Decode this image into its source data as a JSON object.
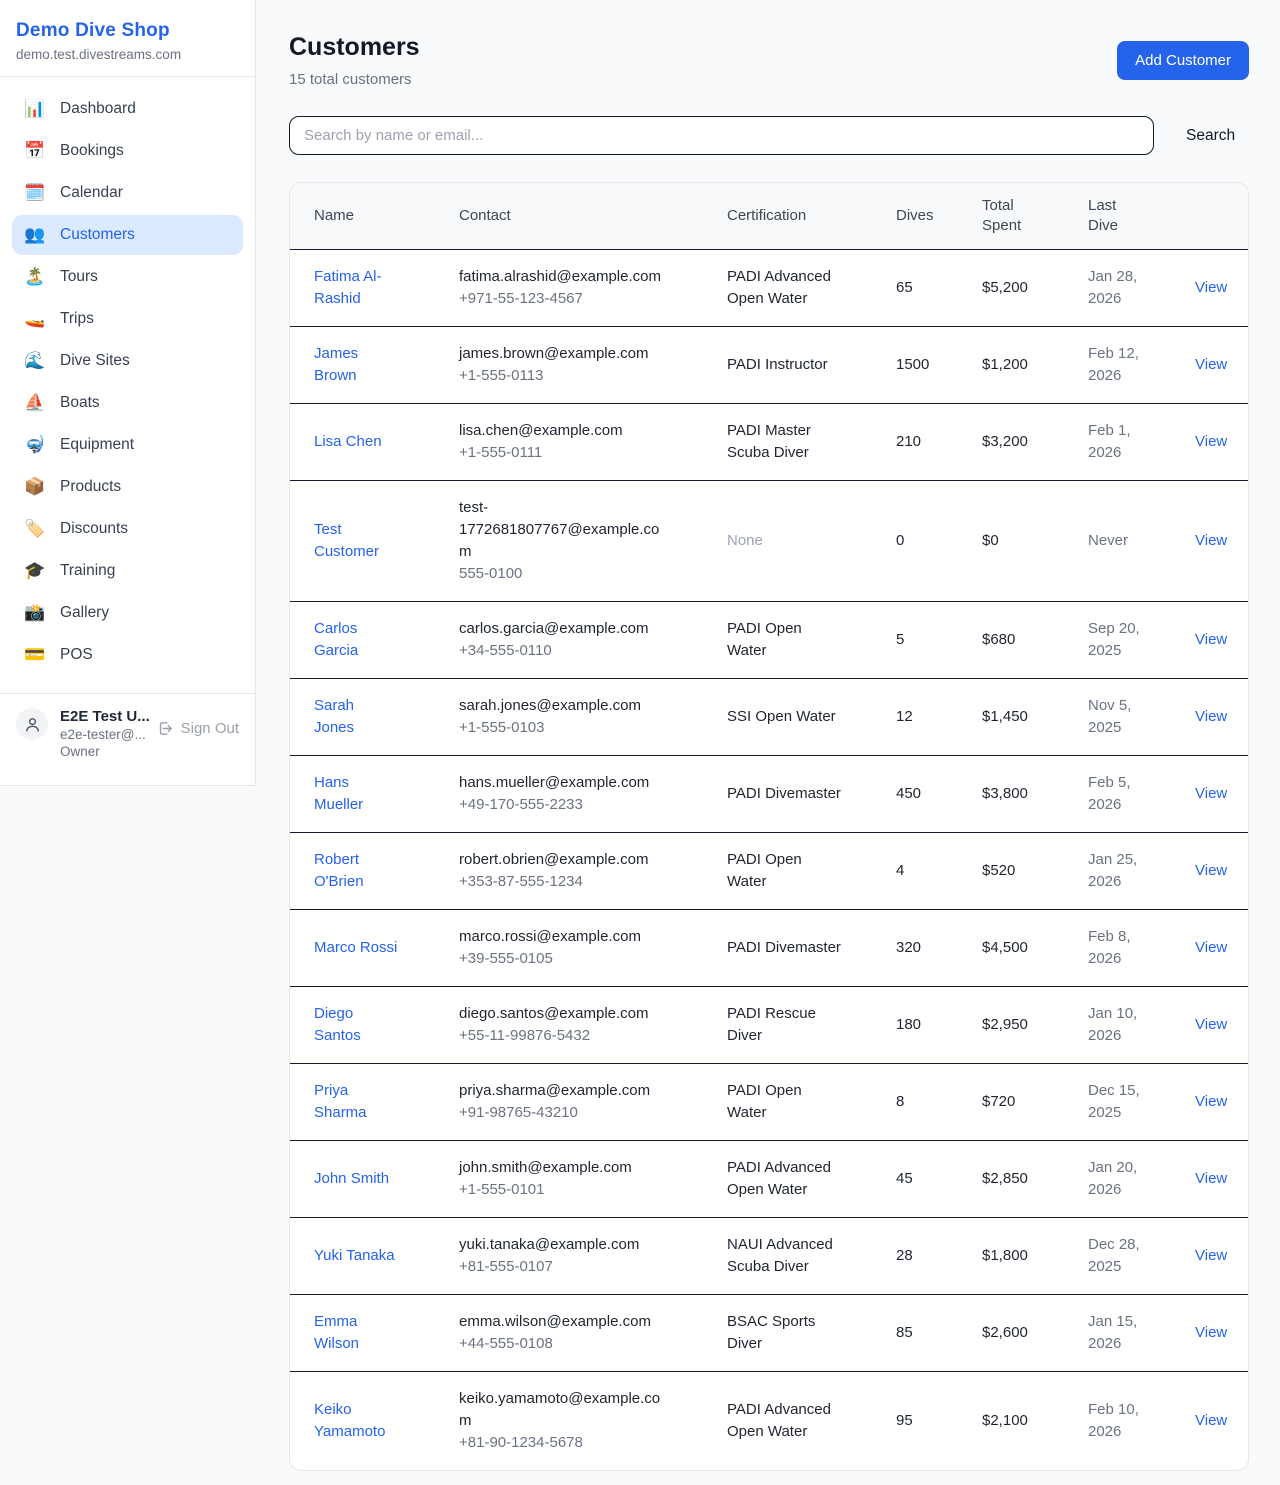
{
  "colors": {
    "accent": "#2563eb",
    "selected_item_bg": "#dbeafe",
    "page_bg": "#f8fafc",
    "dark_border": "#151b28"
  },
  "sidebar": {
    "title": "Demo Dive Shop",
    "subdomain": "demo.test.divestreams.com",
    "items": [
      {
        "icon": "bar-chart-icon",
        "glyph": "📊",
        "label": "Dashboard",
        "active": false
      },
      {
        "icon": "calendar-date-icon",
        "glyph": "📅",
        "label": "Bookings",
        "active": false
      },
      {
        "icon": "calendar-pad-icon",
        "glyph": "🗓️",
        "label": "Calendar",
        "active": false
      },
      {
        "icon": "people-icon",
        "glyph": "👥",
        "label": "Customers",
        "active": true
      },
      {
        "icon": "island-icon",
        "glyph": "🏝️",
        "label": "Tours",
        "active": false
      },
      {
        "icon": "speedboat-icon",
        "glyph": "🚤",
        "label": "Trips",
        "active": false
      },
      {
        "icon": "wave-icon",
        "glyph": "🌊",
        "label": "Dive Sites",
        "active": false
      },
      {
        "icon": "sailboat-icon",
        "glyph": "⛵",
        "label": "Boats",
        "active": false
      },
      {
        "icon": "diving-mask-icon",
        "glyph": "🤿",
        "label": "Equipment",
        "active": false
      },
      {
        "icon": "package-icon",
        "glyph": "📦",
        "label": "Products",
        "active": false
      },
      {
        "icon": "label-tag-icon",
        "glyph": "🏷️",
        "label": "Discounts",
        "active": false
      },
      {
        "icon": "graduation-cap-icon",
        "glyph": "🎓",
        "label": "Training",
        "active": false
      },
      {
        "icon": "camera-icon",
        "glyph": "📸",
        "label": "Gallery",
        "active": false
      },
      {
        "icon": "credit-card-icon",
        "glyph": "💳",
        "label": "POS",
        "active": false
      }
    ],
    "user": {
      "name": "E2E Test U...",
      "email": "e2e-tester@...",
      "role": "Owner",
      "sign_out_label": "Sign Out"
    }
  },
  "header": {
    "title": "Customers",
    "subtitle": "15 total customers",
    "add_button_label": "Add Customer"
  },
  "search": {
    "placeholder": "Search by name or email...",
    "button_label": "Search"
  },
  "table": {
    "columns": [
      "Name",
      "Contact",
      "Certification",
      "Dives",
      "Total Spent",
      "Last Dive"
    ],
    "view_label": "View",
    "rows": [
      {
        "name": "Fatima Al-Rashid",
        "email": "fatima.alrashid@example.com",
        "phone": "+971-55-123-4567",
        "certification": "PADI Advanced Open Water",
        "dives": "65",
        "total_spent": "$5,200",
        "last_dive": "Jan 28, 2026"
      },
      {
        "name": "James Brown",
        "email": "james.brown@example.com",
        "phone": "+1-555-0113",
        "certification": "PADI Instructor",
        "dives": "1500",
        "total_spent": "$1,200",
        "last_dive": "Feb 12, 2026"
      },
      {
        "name": "Lisa Chen",
        "email": "lisa.chen@example.com",
        "phone": "+1-555-0111",
        "certification": "PADI Master Scuba Diver",
        "dives": "210",
        "total_spent": "$3,200",
        "last_dive": "Feb 1, 2026"
      },
      {
        "name": "Test Customer",
        "email": "test-1772681807767@example.com",
        "phone": "555-0100",
        "certification": "None",
        "dives": "0",
        "total_spent": "$0",
        "last_dive": "Never"
      },
      {
        "name": "Carlos Garcia",
        "email": "carlos.garcia@example.com",
        "phone": "+34-555-0110",
        "certification": "PADI Open Water",
        "dives": "5",
        "total_spent": "$680",
        "last_dive": "Sep 20, 2025"
      },
      {
        "name": "Sarah Jones",
        "email": "sarah.jones@example.com",
        "phone": "+1-555-0103",
        "certification": "SSI Open Water",
        "dives": "12",
        "total_spent": "$1,450",
        "last_dive": "Nov 5, 2025"
      },
      {
        "name": "Hans Mueller",
        "email": "hans.mueller@example.com",
        "phone": "+49-170-555-2233",
        "certification": "PADI Divemaster",
        "dives": "450",
        "total_spent": "$3,800",
        "last_dive": "Feb 5, 2026"
      },
      {
        "name": "Robert O'Brien",
        "email": "robert.obrien@example.com",
        "phone": "+353-87-555-1234",
        "certification": "PADI Open Water",
        "dives": "4",
        "total_spent": "$520",
        "last_dive": "Jan 25, 2026"
      },
      {
        "name": "Marco Rossi",
        "email": "marco.rossi@example.com",
        "phone": "+39-555-0105",
        "certification": "PADI Divemaster",
        "dives": "320",
        "total_spent": "$4,500",
        "last_dive": "Feb 8, 2026"
      },
      {
        "name": "Diego Santos",
        "email": "diego.santos@example.com",
        "phone": "+55-11-99876-5432",
        "certification": "PADI Rescue Diver",
        "dives": "180",
        "total_spent": "$2,950",
        "last_dive": "Jan 10, 2026"
      },
      {
        "name": "Priya Sharma",
        "email": "priya.sharma@example.com",
        "phone": "+91-98765-43210",
        "certification": "PADI Open Water",
        "dives": "8",
        "total_spent": "$720",
        "last_dive": "Dec 15, 2025"
      },
      {
        "name": "John Smith",
        "email": "john.smith@example.com",
        "phone": "+1-555-0101",
        "certification": "PADI Advanced Open Water",
        "dives": "45",
        "total_spent": "$2,850",
        "last_dive": "Jan 20, 2026"
      },
      {
        "name": "Yuki Tanaka",
        "email": "yuki.tanaka@example.com",
        "phone": "+81-555-0107",
        "certification": "NAUI Advanced Scuba Diver",
        "dives": "28",
        "total_spent": "$1,800",
        "last_dive": "Dec 28, 2025"
      },
      {
        "name": "Emma Wilson",
        "email": "emma.wilson@example.com",
        "phone": "+44-555-0108",
        "certification": "BSAC Sports Diver",
        "dives": "85",
        "total_spent": "$2,600",
        "last_dive": "Jan 15, 2026"
      },
      {
        "name": "Keiko Yamamoto",
        "email": "keiko.yamamoto@example.com",
        "phone": "+81-90-1234-5678",
        "certification": "PADI Advanced Open Water",
        "dives": "95",
        "total_spent": "$2,100",
        "last_dive": "Feb 10, 2026"
      }
    ]
  }
}
